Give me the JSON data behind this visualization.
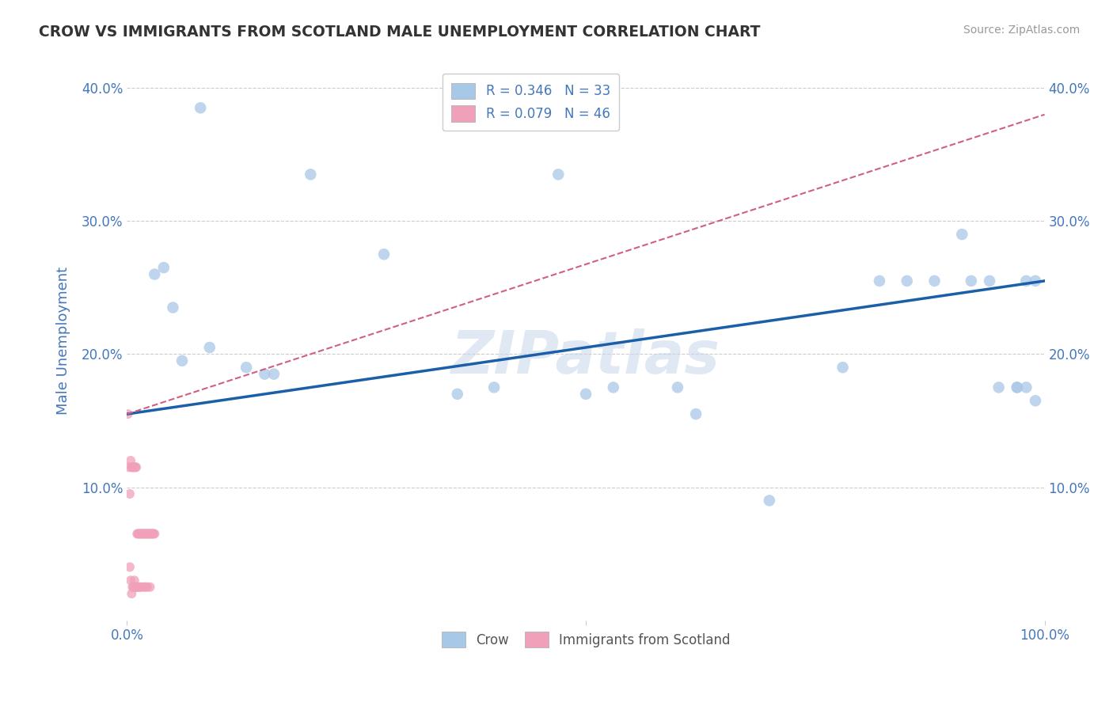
{
  "title": "CROW VS IMMIGRANTS FROM SCOTLAND MALE UNEMPLOYMENT CORRELATION CHART",
  "source": "Source: ZipAtlas.com",
  "ylabel": "Male Unemployment",
  "xlim": [
    0,
    1.0
  ],
  "ylim": [
    0,
    0.42
  ],
  "legend_r1": "R = 0.346",
  "legend_n1": "N = 33",
  "legend_r2": "R = 0.079",
  "legend_n2": "N = 46",
  "blue_color": "#a8c8e8",
  "blue_line_color": "#1a5fa8",
  "pink_color": "#f0a0b8",
  "pink_line_color": "#d06080",
  "label_color": "#4477bb",
  "crow_x": [
    0.08,
    0.2,
    0.28,
    0.04,
    0.03,
    0.05,
    0.06,
    0.09,
    0.13,
    0.15,
    0.47,
    0.36,
    0.4,
    0.53,
    0.6,
    0.7,
    0.78,
    0.82,
    0.85,
    0.88,
    0.91,
    0.92,
    0.94,
    0.95,
    0.97,
    0.98,
    0.99,
    0.98,
    0.97,
    0.99,
    0.62,
    0.5,
    0.16
  ],
  "crow_y": [
    0.385,
    0.335,
    0.275,
    0.265,
    0.26,
    0.235,
    0.195,
    0.205,
    0.19,
    0.185,
    0.335,
    0.17,
    0.175,
    0.175,
    0.175,
    0.09,
    0.19,
    0.255,
    0.255,
    0.255,
    0.29,
    0.255,
    0.255,
    0.175,
    0.175,
    0.255,
    0.255,
    0.175,
    0.175,
    0.165,
    0.155,
    0.17,
    0.185
  ],
  "scotland_x": [
    0.001,
    0.002,
    0.003,
    0.004,
    0.005,
    0.006,
    0.007,
    0.008,
    0.009,
    0.01,
    0.011,
    0.012,
    0.013,
    0.014,
    0.015,
    0.016,
    0.017,
    0.018,
    0.019,
    0.02,
    0.021,
    0.022,
    0.023,
    0.024,
    0.025,
    0.026,
    0.027,
    0.028,
    0.029,
    0.03,
    0.005,
    0.003,
    0.004,
    0.006,
    0.008,
    0.01,
    0.012,
    0.015,
    0.018,
    0.022,
    0.025,
    0.02,
    0.007,
    0.009,
    0.011,
    0.014
  ],
  "scotland_y": [
    0.155,
    0.115,
    0.095,
    0.12,
    0.115,
    0.115,
    0.115,
    0.115,
    0.115,
    0.115,
    0.065,
    0.065,
    0.065,
    0.065,
    0.065,
    0.065,
    0.065,
    0.065,
    0.065,
    0.065,
    0.065,
    0.065,
    0.065,
    0.065,
    0.065,
    0.065,
    0.065,
    0.065,
    0.065,
    0.065,
    0.02,
    0.04,
    0.03,
    0.025,
    0.03,
    0.025,
    0.025,
    0.025,
    0.025,
    0.025,
    0.025,
    0.025,
    0.025,
    0.025,
    0.025,
    0.025
  ],
  "blue_line_x0": 0.0,
  "blue_line_y0": 0.155,
  "blue_line_x1": 1.0,
  "blue_line_y1": 0.255,
  "pink_line_x0": 0.0,
  "pink_line_y0": 0.155,
  "pink_line_x1": 1.0,
  "pink_line_y1": 0.38,
  "watermark": "ZIPatlas",
  "background_color": "#ffffff",
  "grid_color": "#cccccc"
}
